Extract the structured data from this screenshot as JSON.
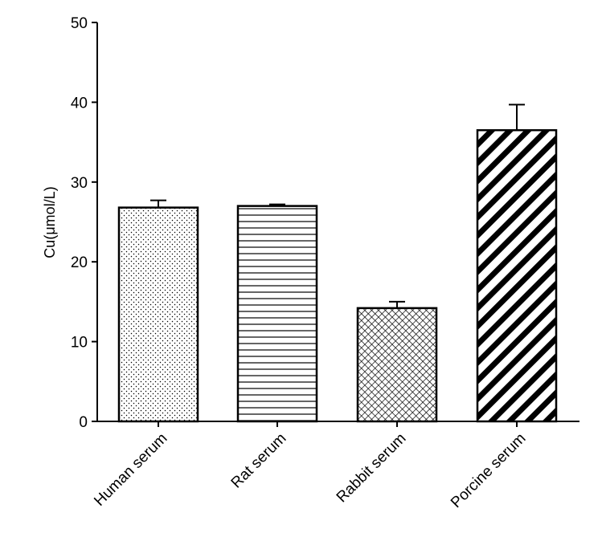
{
  "chart_data": {
    "type": "bar",
    "categories": [
      "Human serum",
      "Rat serum",
      "Rabbit serum",
      "Porcine serum"
    ],
    "values": [
      26.8,
      27.0,
      14.2,
      36.5
    ],
    "error_plus": [
      0.9,
      0.2,
      0.8,
      3.2
    ],
    "ylabel": "Cu(μmol/L)",
    "xlabel": "",
    "ylim": [
      0,
      50
    ],
    "yticks": [
      0,
      10,
      20,
      30,
      40,
      50
    ],
    "fill_patterns": [
      "dots",
      "horizontal-lines",
      "crosshatch",
      "diagonal-stripes"
    ],
    "grid": false,
    "colors": {
      "stroke": "#000000",
      "fill": "#ffffff"
    }
  }
}
